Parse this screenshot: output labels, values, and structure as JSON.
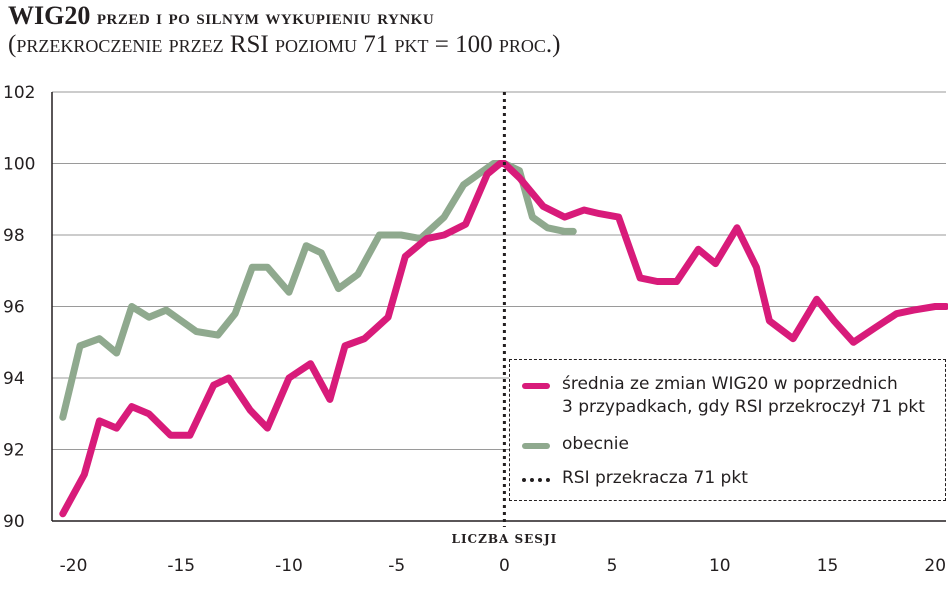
{
  "header": {
    "title_main": "WIG20",
    "title_rest": "przed i po silnym wykupieniu rynku",
    "subtitle_open": "(",
    "subtitle_sc1": "przekroczenie przez",
    "subtitle_mid": " RSI ",
    "subtitle_sc2": "poziomu",
    "subtitle_mid2": " 71 ",
    "subtitle_sc3": "pkt",
    "subtitle_mid3": " = 100 ",
    "subtitle_sc4": "proc.",
    "subtitle_close": ")"
  },
  "legend": {
    "pink_label": "średnia ze zmian WIG20 w poprzednich\n3 przypadkach, gdy RSI przekroczył 71 pkt",
    "green_label": "obecnie",
    "dotted_label": "RSI przekracza 71 pkt"
  },
  "colors": {
    "pink": "#d81b7a",
    "green": "#8fa98e",
    "axis": "#231f20",
    "grid": "#9a9a9a"
  },
  "chart_data": {
    "type": "line",
    "xlabel": "LICZBA SESJI",
    "ylabel": "",
    "xlim": [
      -21,
      20.5
    ],
    "ylim": [
      90,
      102
    ],
    "x_ticks": [
      -20,
      -15,
      -10,
      -5,
      0,
      5,
      10,
      15,
      20
    ],
    "x_tick_labels": [
      "-20",
      "-15",
      "-10",
      "-5",
      "0",
      "5",
      "10",
      "15",
      "20"
    ],
    "y_ticks": [
      90,
      92,
      94,
      96,
      98,
      100,
      102
    ],
    "y_tick_labels": [
      "90",
      "92",
      "94",
      "96",
      "98",
      "100",
      "102"
    ],
    "grid": "horizontal",
    "vline": 0,
    "series": [
      {
        "name": "średnia ze zmian WIG20 w poprzednich 3 przypadkach, gdy RSI przekroczył 71 pkt",
        "color": "#d81b7a",
        "x": [
          -20.5,
          -19.5,
          -18.8,
          -18,
          -17.3,
          -16.5,
          -15.5,
          -14.6,
          -13.5,
          -12.8,
          -11.8,
          -11,
          -10,
          -9,
          -8.1,
          -7.4,
          -6.5,
          -5.4,
          -4.6,
          -3.6,
          -2.8,
          -1.8,
          -0.8,
          -0.2,
          0,
          0.7,
          1.8,
          2.8,
          3.7,
          4.4,
          5.3,
          6.3,
          7.1,
          8,
          9,
          9.8,
          10.8,
          11.7,
          12.3,
          13.4,
          14.5,
          15.3,
          16.2,
          17.2,
          18.2,
          19,
          20,
          20.5
        ],
        "y": [
          90.2,
          91.3,
          92.8,
          92.6,
          93.2,
          93.0,
          92.4,
          92.4,
          93.8,
          94.0,
          93.1,
          92.6,
          94.0,
          94.4,
          93.4,
          94.9,
          95.1,
          95.7,
          97.4,
          97.9,
          98.0,
          98.3,
          99.7,
          100.0,
          100.0,
          99.6,
          98.8,
          98.5,
          98.7,
          98.6,
          98.5,
          96.8,
          96.7,
          96.7,
          97.6,
          97.2,
          98.2,
          97.1,
          95.6,
          95.1,
          96.2,
          95.6,
          95.0,
          95.4,
          95.8,
          95.9,
          96.0,
          96.0
        ]
      },
      {
        "name": "obecnie",
        "color": "#8fa98e",
        "x": [
          -20.5,
          -19.7,
          -18.8,
          -18,
          -17.3,
          -16.5,
          -15.7,
          -15,
          -14.3,
          -13.3,
          -12.5,
          -11.7,
          -11,
          -10,
          -9.2,
          -8.5,
          -7.7,
          -6.8,
          -5.8,
          -4.8,
          -3.9,
          -2.8,
          -1.9,
          -1.2,
          -0.5,
          0,
          0.7,
          1.3,
          2,
          2.8,
          3.2
        ],
        "y": [
          92.9,
          94.9,
          95.1,
          94.7,
          96.0,
          95.7,
          95.9,
          95.6,
          95.3,
          95.2,
          95.8,
          97.1,
          97.1,
          96.4,
          97.7,
          97.5,
          96.5,
          96.9,
          98.0,
          98.0,
          97.9,
          98.5,
          99.4,
          99.7,
          100.0,
          100.0,
          99.8,
          98.5,
          98.2,
          98.1,
          98.1
        ]
      }
    ]
  }
}
